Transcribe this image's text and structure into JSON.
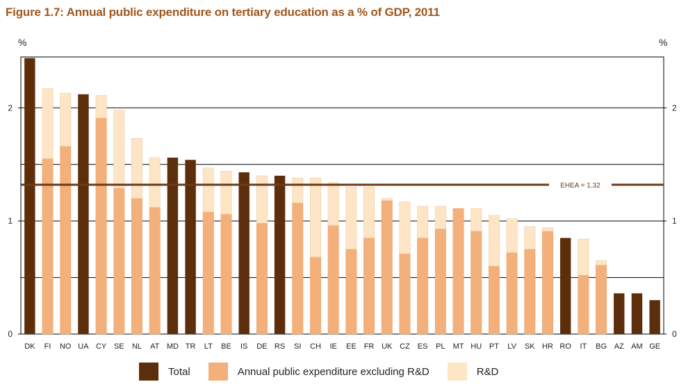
{
  "chart_data": {
    "type": "bar",
    "title": "Figure 1.7: Annual public expenditure on tertiary education as a % of GDP, 2011",
    "unit_left": "%",
    "unit_right": "%",
    "ylim": [
      0,
      2.45
    ],
    "yticks": [
      0,
      1,
      2
    ],
    "grid": true,
    "categories": [
      "DK",
      "FI",
      "NO",
      "UA",
      "CY",
      "SE",
      "NL",
      "AT",
      "MD",
      "TR",
      "LT",
      "BE",
      "IS",
      "DE",
      "RS",
      "SI",
      "CH",
      "IE",
      "EE",
      "FR",
      "UK",
      "CZ",
      "ES",
      "PL",
      "MT",
      "HU",
      "PT",
      "LV",
      "SK",
      "HR",
      "RO",
      "IT",
      "BG",
      "AZ",
      "AM",
      "GE"
    ],
    "series": [
      {
        "name": "Total",
        "color": "#5c2e0b",
        "values": [
          2.44,
          null,
          null,
          2.12,
          null,
          null,
          null,
          null,
          1.56,
          1.54,
          null,
          null,
          1.43,
          null,
          1.4,
          null,
          null,
          null,
          null,
          null,
          null,
          null,
          null,
          null,
          null,
          null,
          null,
          null,
          null,
          null,
          0.85,
          null,
          null,
          0.36,
          0.36,
          0.3
        ]
      },
      {
        "name": "Annual public expenditure excluding R&D",
        "color": "#f4b07a",
        "values": [
          null,
          1.55,
          1.66,
          null,
          1.91,
          1.29,
          1.2,
          1.12,
          null,
          null,
          1.08,
          1.06,
          null,
          0.98,
          null,
          1.16,
          0.68,
          0.96,
          0.75,
          0.85,
          1.18,
          0.71,
          0.85,
          0.93,
          1.11,
          0.91,
          0.6,
          0.72,
          0.75,
          0.91,
          null,
          0.52,
          0.61,
          null,
          null,
          null
        ]
      },
      {
        "name": "R&D",
        "color": "#fde5c5",
        "values": [
          null,
          0.62,
          0.47,
          null,
          0.2,
          0.69,
          0.53,
          0.44,
          null,
          null,
          0.39,
          0.38,
          null,
          0.42,
          null,
          0.22,
          0.7,
          0.38,
          0.55,
          0.45,
          0.02,
          0.46,
          0.28,
          0.2,
          0,
          0.2,
          0.45,
          0.3,
          0.2,
          0.03,
          null,
          0.32,
          0.04,
          null,
          null,
          null
        ]
      }
    ],
    "reference_line": {
      "label": "EHEA = 1.32",
      "value": 1.32,
      "color": "#6b3a16"
    },
    "legend": {
      "position": "bottom"
    }
  }
}
